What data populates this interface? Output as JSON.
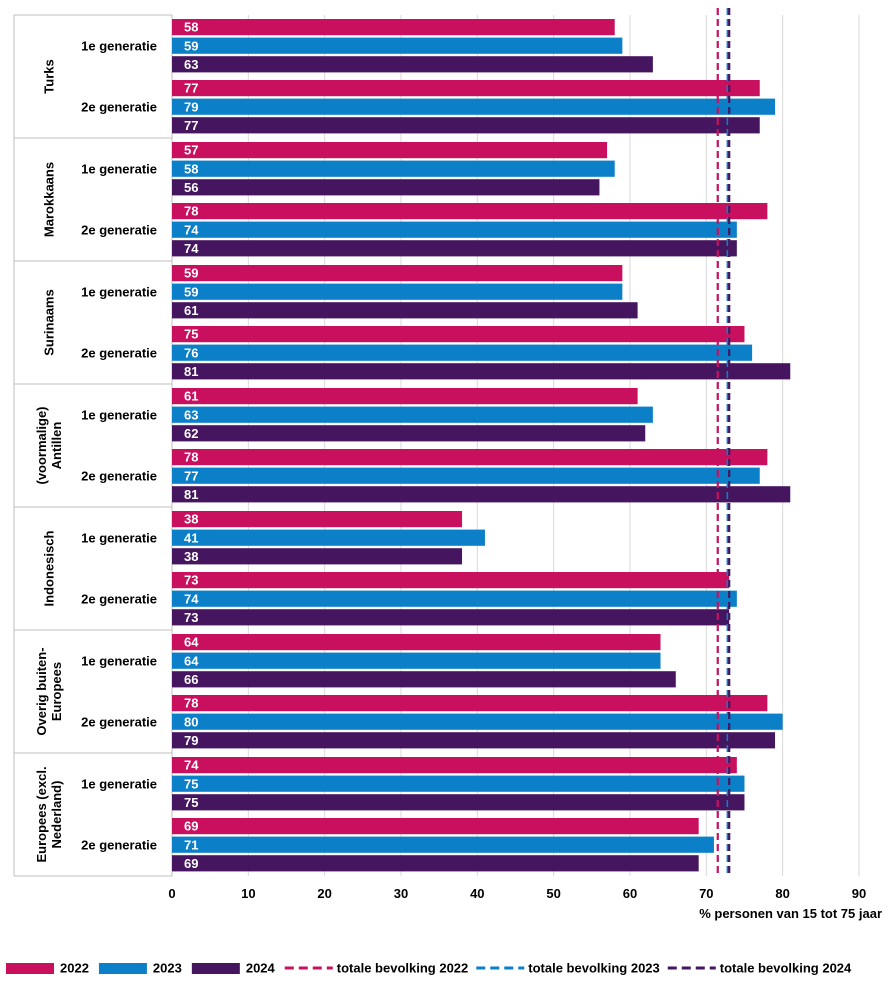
{
  "chart_data": {
    "type": "bar",
    "orientation": "horizontal",
    "xlabel": "% personen van 15 tot 75 jaar",
    "xlim": [
      0,
      90
    ],
    "xticks": [
      0,
      10,
      20,
      30,
      40,
      50,
      60,
      70,
      80,
      90
    ],
    "grid": true,
    "legend_position": "bottom",
    "series": [
      {
        "name": "2022",
        "color": "#c8105f"
      },
      {
        "name": "2023",
        "color": "#0b7fc7"
      },
      {
        "name": "2024",
        "color": "#45165f"
      }
    ],
    "reference_lines": [
      {
        "name": "totale bevolking 2022",
        "value": 71.5,
        "color": "#c8105f",
        "style": "dashed"
      },
      {
        "name": "totale bevolking 2023",
        "value": 72.8,
        "color": "#0b7fc7",
        "style": "dashed"
      },
      {
        "name": "totale bevolking 2024",
        "value": 73.0,
        "color": "#45165f",
        "style": "dashed"
      }
    ],
    "groups": [
      {
        "name_lines": [
          "Turks"
        ],
        "subgroups": [
          {
            "label": "1e generatie",
            "values": [
              58,
              59,
              63
            ]
          },
          {
            "label": "2e generatie",
            "values": [
              77,
              79,
              77
            ]
          }
        ]
      },
      {
        "name_lines": [
          "Marokkaans"
        ],
        "subgroups": [
          {
            "label": "1e generatie",
            "values": [
              57,
              58,
              56
            ]
          },
          {
            "label": "2e generatie",
            "values": [
              78,
              74,
              74
            ]
          }
        ]
      },
      {
        "name_lines": [
          "Surinaams"
        ],
        "subgroups": [
          {
            "label": "1e generatie",
            "values": [
              59,
              59,
              61
            ]
          },
          {
            "label": "2e generatie",
            "values": [
              75,
              76,
              81
            ]
          }
        ]
      },
      {
        "name_lines": [
          "(voormalige)",
          "Antillen"
        ],
        "subgroups": [
          {
            "label": "1e generatie",
            "values": [
              61,
              63,
              62
            ]
          },
          {
            "label": "2e generatie",
            "values": [
              78,
              77,
              81
            ]
          }
        ]
      },
      {
        "name_lines": [
          "Indonesisch"
        ],
        "subgroups": [
          {
            "label": "1e generatie",
            "values": [
              38,
              41,
              38
            ]
          },
          {
            "label": "2e generatie",
            "values": [
              73,
              74,
              73
            ]
          }
        ]
      },
      {
        "name_lines": [
          "Overig buiten-",
          "Europees"
        ],
        "subgroups": [
          {
            "label": "1e generatie",
            "values": [
              64,
              64,
              66
            ]
          },
          {
            "label": "2e generatie",
            "values": [
              78,
              80,
              79
            ]
          }
        ]
      },
      {
        "name_lines": [
          "Europees (excl.",
          "Nederland)"
        ],
        "subgroups": [
          {
            "label": "1e generatie",
            "values": [
              74,
              75,
              75
            ]
          },
          {
            "label": "2e generatie",
            "values": [
              69,
              71,
              69
            ]
          }
        ]
      }
    ]
  }
}
